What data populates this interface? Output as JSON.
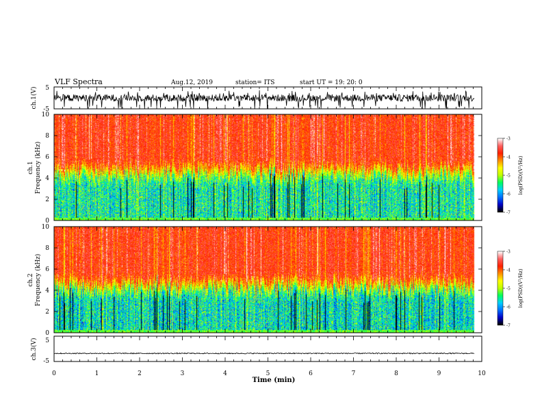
{
  "header": {
    "title": "VLF Spectra",
    "date": "Aug.12, 2019",
    "station": "station= ITS",
    "start": "start UT =  19: 20: 0"
  },
  "chart_data": [
    {
      "type": "line",
      "name": "ch1-waveform",
      "ylabel": "ch.1(V)",
      "xlim": [
        0,
        10
      ],
      "ylim": [
        -5,
        5
      ],
      "yticks": [
        "5",
        "-5"
      ],
      "x_extent": [
        0,
        9.82
      ],
      "baseline": 0,
      "noise_amplitude": 1.6,
      "spike_min": -5,
      "spike_max": 3.5
    },
    {
      "type": "heatmap",
      "name": "ch1-spectrogram",
      "ylabel": "ch.1 Frequency (kHz)",
      "ylabel_lines": [
        "ch.1",
        "Frequency (kHz)"
      ],
      "xlim": [
        0,
        10
      ],
      "ylim": [
        0,
        10
      ],
      "yticks": [
        "0",
        "2",
        "4",
        "6",
        "8",
        "10"
      ],
      "x_extent": [
        0,
        9.82
      ],
      "colorbar": {
        "label": "log(PSD)(V²/Hz)",
        "range": [
          -7,
          -3
        ],
        "ticks": [
          "-3",
          "-4",
          "-5",
          "-6",
          "-7"
        ]
      },
      "low_band_khz": 4.5,
      "high_band_level": -3.8,
      "low_band_level": -5.6
    },
    {
      "type": "heatmap",
      "name": "ch2-spectrogram",
      "ylabel": "ch.2 Frequency (kHz)",
      "ylabel_lines": [
        "ch.2",
        "Frequency (kHz)"
      ],
      "xlim": [
        0,
        10
      ],
      "ylim": [
        0,
        10
      ],
      "yticks": [
        "0",
        "2",
        "4",
        "6",
        "8",
        "10"
      ],
      "x_extent": [
        0,
        9.82
      ],
      "colorbar": {
        "label": "log(PSD)(V²/Hz)",
        "range": [
          -7,
          -3
        ],
        "ticks": [
          "-3",
          "-4",
          "-5",
          "-6",
          "-7"
        ]
      },
      "low_band_khz": 4.3,
      "high_band_level": -3.8,
      "low_band_level": -5.7
    },
    {
      "type": "line",
      "name": "ch3-waveform",
      "ylabel": "ch.3(V)",
      "xlim": [
        0,
        10
      ],
      "ylim": [
        -5,
        5
      ],
      "yticks": [
        "5",
        "-5"
      ],
      "x_extent": [
        0,
        9.82
      ],
      "baseline": -1.8,
      "noise_amplitude": 0.2
    }
  ],
  "xaxis": {
    "label": "Time (min)",
    "ticks": [
      "0",
      "1",
      "2",
      "3",
      "4",
      "5",
      "6",
      "7",
      "8",
      "9",
      "10"
    ]
  },
  "colors": {
    "colormap": [
      "#000000",
      "#0000c8",
      "#0070ff",
      "#00d0ff",
      "#00ff60",
      "#c0ff00",
      "#ffff00",
      "#ff9000",
      "#ff2000",
      "#ff6060",
      "#ffffff"
    ]
  }
}
